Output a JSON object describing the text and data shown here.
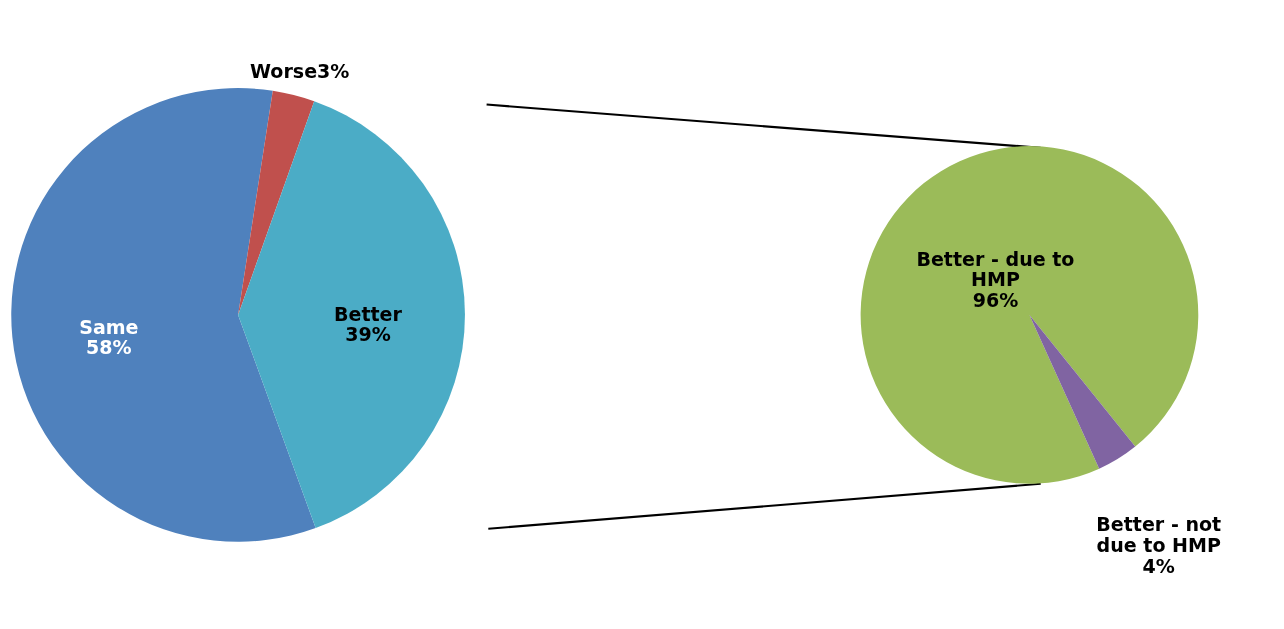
{
  "chart_data": [
    {
      "type": "pie",
      "categories": [
        "Same",
        "Worse",
        "Better"
      ],
      "values": [
        58,
        3,
        39
      ],
      "colors": [
        "#4f81bd",
        "#c0504d",
        "#4bacc6"
      ],
      "value_labels": [
        "58%",
        "3%",
        "39%"
      ]
    },
    {
      "type": "pie",
      "categories": [
        "Better - due to HMP",
        "Better - not due to HMP"
      ],
      "values": [
        96,
        4
      ],
      "colors": [
        "#9bbb59",
        "#8064a2"
      ],
      "value_labels": [
        "96%",
        "4%"
      ]
    }
  ]
}
